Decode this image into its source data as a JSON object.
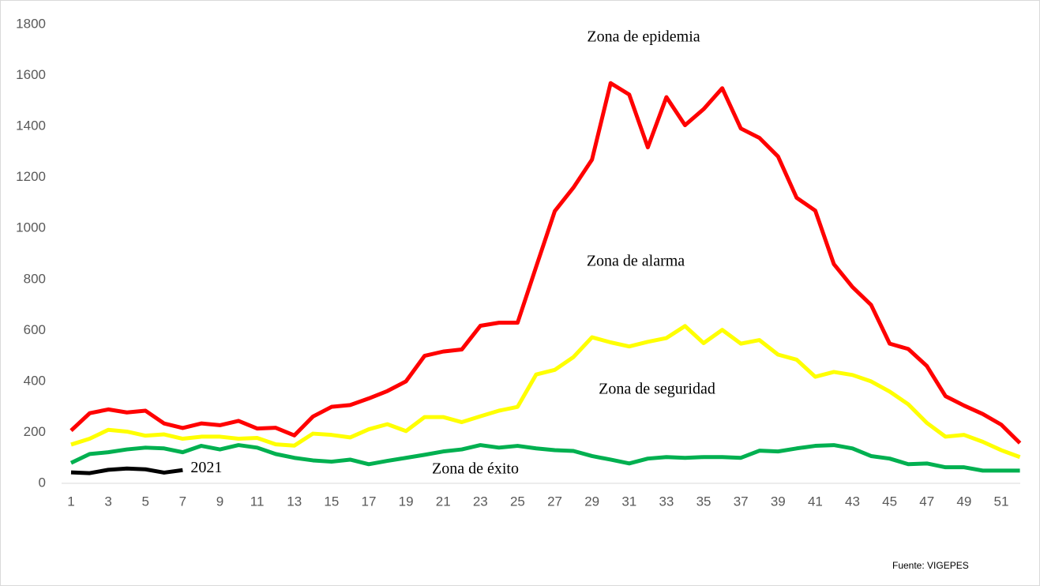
{
  "chart_data": {
    "type": "line",
    "categories": [
      1,
      null,
      3,
      null,
      5,
      null,
      7,
      null,
      9,
      null,
      11,
      null,
      13,
      null,
      15,
      null,
      17,
      null,
      19,
      null,
      21,
      null,
      23,
      null,
      25,
      null,
      27,
      null,
      29,
      null,
      31,
      null,
      33,
      null,
      35,
      null,
      37,
      null,
      39,
      null,
      41,
      null,
      43,
      null,
      45,
      null,
      47,
      null,
      49,
      null,
      51,
      null
    ],
    "series": [
      {
        "color": "#ff0000",
        "values": [
          207,
          275,
          290,
          278,
          285,
          235,
          217,
          235,
          228,
          245,
          215,
          218,
          188,
          262,
          300,
          307,
          333,
          362,
          400,
          500,
          517,
          525,
          618,
          630,
          630,
          850,
          1068,
          1160,
          1270,
          1570,
          1525,
          1318,
          1515,
          1405,
          1468,
          1550,
          1392,
          1355,
          1282,
          1120,
          1070,
          860,
          770,
          700,
          548,
          527,
          460,
          342,
          305,
          272,
          230,
          158
        ]
      },
      {
        "color": "#ffff00",
        "values": [
          152,
          175,
          210,
          203,
          187,
          192,
          175,
          183,
          183,
          175,
          178,
          153,
          148,
          195,
          190,
          180,
          212,
          232,
          205,
          260,
          260,
          240,
          263,
          285,
          300,
          427,
          445,
          495,
          573,
          553,
          537,
          555,
          570,
          617,
          550,
          602,
          548,
          562,
          505,
          485,
          418,
          437,
          425,
          400,
          360,
          310,
          237,
          183,
          190,
          163,
          130,
          103
        ]
      },
      {
        "color": "#00b050",
        "values": [
          80,
          115,
          122,
          133,
          140,
          137,
          122,
          147,
          133,
          150,
          140,
          115,
          100,
          90,
          85,
          93,
          75,
          88,
          100,
          112,
          125,
          133,
          150,
          140,
          147,
          137,
          130,
          127,
          107,
          93,
          78,
          97,
          103,
          100,
          103,
          103,
          100,
          128,
          125,
          137,
          147,
          150,
          137,
          107,
          97,
          75,
          78,
          63,
          63,
          50,
          50,
          50
        ]
      },
      {
        "name": "2021",
        "color": "#000000",
        "values": [
          43,
          40,
          53,
          58,
          55,
          42,
          52,
          null,
          null,
          null,
          null,
          null,
          null,
          null,
          null,
          null,
          null,
          null,
          null,
          null,
          null,
          null,
          null,
          null,
          null,
          null,
          null,
          null,
          null,
          null,
          null,
          null,
          null,
          null,
          null,
          null,
          null,
          null,
          null,
          null,
          null,
          null,
          null,
          null,
          null,
          null,
          null,
          null,
          null,
          null,
          null,
          null
        ]
      }
    ],
    "ylim": [
      0,
      1800
    ],
    "yticks": [
      0,
      200,
      400,
      600,
      800,
      1000,
      1200,
      1400,
      1600,
      1800
    ],
    "annotations": [
      "Zona de epidemia",
      "Zona de alarma",
      "Zona de seguridad",
      "Zona de éxito"
    ],
    "source": "Fuente: VIGEPES"
  }
}
